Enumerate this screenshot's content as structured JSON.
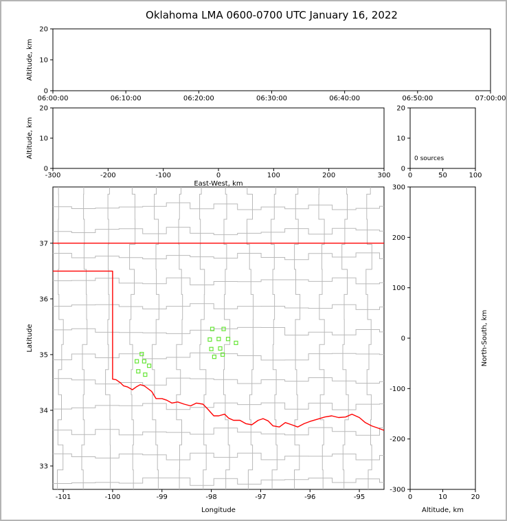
{
  "page": {
    "title": "Oklahoma LMA 0600-0700 UTC January 16, 2022",
    "background": "#ffffff",
    "frame_color": "#b4b4b4"
  },
  "chart_data": [
    {
      "id": "time_height",
      "type": "scatter",
      "title": "",
      "xlabel": "",
      "ylabel": "Altitude, km",
      "xlim": [
        0,
        6
      ],
      "xticks": [
        0,
        1,
        2,
        3,
        4,
        5,
        6
      ],
      "xtick_labels": [
        "06:00:00",
        "06:10:00",
        "06:20:00",
        "06:30:00",
        "06:40:00",
        "06:50:00",
        "07:00:00"
      ],
      "ylim": [
        0,
        20
      ],
      "yticks": [
        0,
        10,
        20
      ],
      "points": []
    },
    {
      "id": "ew_height",
      "type": "scatter",
      "xlabel": "East-West, km",
      "ylabel": "Altitude, km",
      "xlim": [
        -300,
        300
      ],
      "xticks": [
        -300,
        -200,
        -100,
        0,
        100,
        200,
        300
      ],
      "ylim": [
        0,
        20
      ],
      "yticks": [
        0,
        10,
        20
      ],
      "points": []
    },
    {
      "id": "alt_source_histogram",
      "type": "bar",
      "xlim": [
        0,
        100
      ],
      "xticks": [
        0,
        50,
        100
      ],
      "ylim": [
        0,
        20
      ],
      "yticks": [
        0,
        10,
        20
      ],
      "annotation": "0 sources",
      "values": []
    },
    {
      "id": "plan_view_map",
      "type": "scatter",
      "xlabel": "Longitude",
      "ylabel": "Latitude",
      "xlim": [
        -101.21,
        -94.5
      ],
      "xticks": [
        -101,
        -100,
        -99,
        -98,
        -97,
        -96,
        -95
      ],
      "ylim": [
        32.58,
        38.01
      ],
      "yticks": [
        33,
        34,
        35,
        36,
        37
      ],
      "colors": {
        "county": "#b9b9b9",
        "state": "#ff0000",
        "station": "#66e636"
      },
      "county_grid": {
        "lon_start": -101.05,
        "lon_step": 0.48,
        "lat_start": 32.72,
        "lat_step": 0.45,
        "jitter": 0.14
      },
      "stations": [
        [
          -97.98,
          35.46
        ],
        [
          -97.75,
          35.46
        ],
        [
          -98.03,
          35.27
        ],
        [
          -97.85,
          35.28
        ],
        [
          -97.66,
          35.28
        ],
        [
          -97.5,
          35.21
        ],
        [
          -98.0,
          35.1
        ],
        [
          -97.82,
          35.11
        ],
        [
          -97.94,
          34.96
        ],
        [
          -97.77,
          35.0
        ],
        [
          -99.41,
          35.01
        ],
        [
          -99.51,
          34.88
        ],
        [
          -99.36,
          34.88
        ],
        [
          -99.26,
          34.8
        ],
        [
          -99.48,
          34.7
        ],
        [
          -99.34,
          34.64
        ]
      ],
      "state_border": {
        "north": [
          [
            -101.21,
            37.0
          ],
          [
            -94.5,
            37.0
          ]
        ],
        "west_south": [
          [
            -101.21,
            36.5
          ],
          [
            -100.0,
            36.5
          ],
          [
            -100.0,
            34.56
          ],
          [
            -99.93,
            34.55
          ],
          [
            -99.85,
            34.5
          ],
          [
            -99.78,
            34.44
          ],
          [
            -99.7,
            34.42
          ],
          [
            -99.6,
            34.37
          ],
          [
            -99.52,
            34.42
          ],
          [
            -99.44,
            34.46
          ],
          [
            -99.36,
            34.44
          ],
          [
            -99.3,
            34.4
          ],
          [
            -99.21,
            34.34
          ],
          [
            -99.12,
            34.21
          ],
          [
            -99.0,
            34.21
          ],
          [
            -98.9,
            34.18
          ],
          [
            -98.8,
            34.13
          ],
          [
            -98.68,
            34.15
          ],
          [
            -98.55,
            34.11
          ],
          [
            -98.42,
            34.08
          ],
          [
            -98.3,
            34.13
          ],
          [
            -98.17,
            34.11
          ],
          [
            -98.08,
            34.03
          ],
          [
            -97.95,
            33.9
          ],
          [
            -97.85,
            33.9
          ],
          [
            -97.73,
            33.93
          ],
          [
            -97.65,
            33.86
          ],
          [
            -97.55,
            33.82
          ],
          [
            -97.42,
            33.82
          ],
          [
            -97.3,
            33.76
          ],
          [
            -97.18,
            33.74
          ],
          [
            -97.05,
            33.82
          ],
          [
            -96.95,
            33.85
          ],
          [
            -96.85,
            33.81
          ],
          [
            -96.75,
            33.72
          ],
          [
            -96.62,
            33.7
          ],
          [
            -96.5,
            33.78
          ],
          [
            -96.37,
            33.74
          ],
          [
            -96.25,
            33.7
          ],
          [
            -96.12,
            33.76
          ],
          [
            -96.0,
            33.8
          ],
          [
            -95.85,
            33.84
          ],
          [
            -95.7,
            33.88
          ],
          [
            -95.56,
            33.9
          ],
          [
            -95.42,
            33.87
          ],
          [
            -95.28,
            33.88
          ],
          [
            -95.15,
            33.93
          ],
          [
            -95.0,
            33.87
          ],
          [
            -94.88,
            33.78
          ],
          [
            -94.75,
            33.72
          ],
          [
            -94.62,
            33.68
          ],
          [
            -94.5,
            33.64
          ]
        ]
      }
    },
    {
      "id": "ns_height",
      "type": "scatter",
      "xlabel": "Altitude, km",
      "ylabel_right": "North-South, km",
      "xlim": [
        0,
        20
      ],
      "xticks": [
        0,
        10,
        20
      ],
      "ylim": [
        -300,
        300
      ],
      "yticks": [
        300,
        200,
        100,
        0,
        -100,
        -200,
        -300
      ],
      "points": []
    }
  ]
}
